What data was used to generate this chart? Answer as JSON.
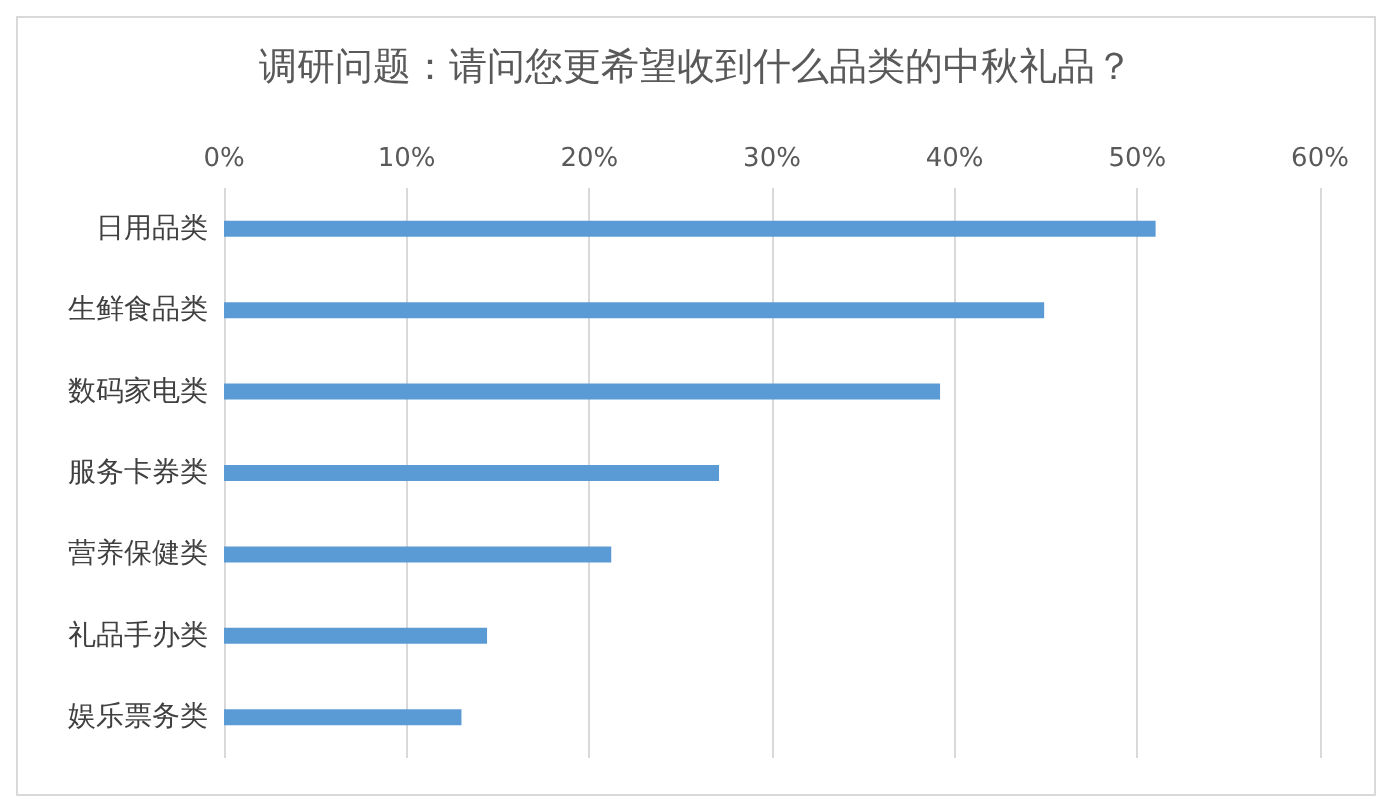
{
  "chart_data": {
    "type": "bar",
    "orientation": "horizontal",
    "title": "调研问题：请问您更希望收到什么品类的中秋礼品？",
    "categories": [
      "日用品类",
      "生鲜食品类",
      "数码家电类",
      "服务卡券类",
      "营养保健类",
      "礼品手办类",
      "娱乐票务类"
    ],
    "values": [
      51,
      44.9,
      39.2,
      27.1,
      21.2,
      14.4,
      13
    ],
    "color": "#5b9bd5",
    "xlim": [
      0,
      60
    ],
    "xticks": [
      {
        "value": 0,
        "label": "0%"
      },
      {
        "value": 10,
        "label": "10%"
      },
      {
        "value": 20,
        "label": "20%"
      },
      {
        "value": 30,
        "label": "30%"
      },
      {
        "value": 40,
        "label": "40%"
      },
      {
        "value": 50,
        "label": "50%"
      },
      {
        "value": 60,
        "label": "60%"
      }
    ],
    "grid": "x"
  }
}
